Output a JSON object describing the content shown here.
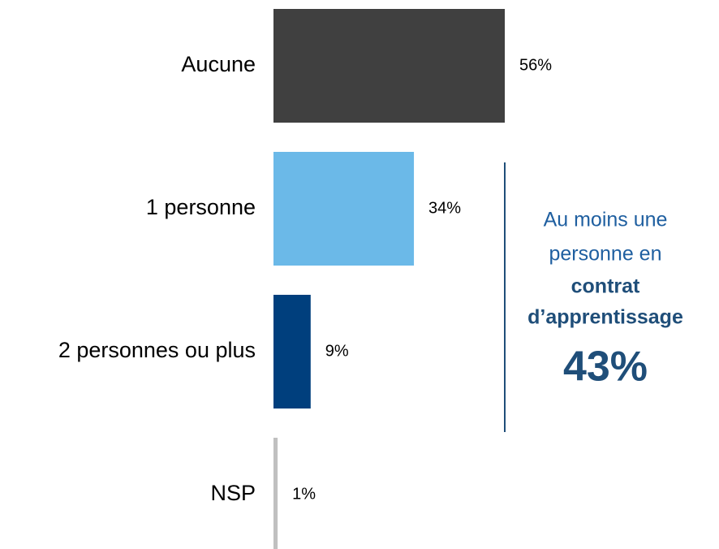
{
  "chart_data": {
    "type": "bar",
    "orientation": "horizontal",
    "categories": [
      "Aucune",
      "1 personne",
      "2 personnes ou plus",
      "NSP"
    ],
    "values": [
      56,
      34,
      9,
      1
    ],
    "value_labels": [
      "56%",
      "34%",
      "9%",
      "1%"
    ],
    "colors": [
      "#404040",
      "#6bb9e8",
      "#003f7d",
      "#c0c0c0"
    ],
    "annotation": {
      "text": [
        "Au moins une",
        "personne en"
      ],
      "bold": [
        "contrat",
        "d’apprentissage"
      ],
      "total": "43%"
    }
  }
}
